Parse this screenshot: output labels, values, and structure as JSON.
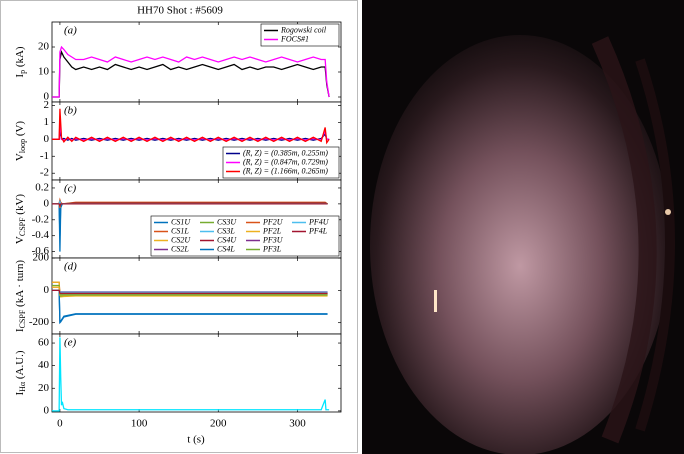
{
  "chart_data": {
    "type": "line",
    "title": "HH70 Shot : #5609",
    "xlabel": "t (s)",
    "xlim": [
      -10,
      355
    ],
    "xticks": [
      0,
      100,
      200,
      300
    ],
    "panels": [
      {
        "label": "(a)",
        "ylabel": {
          "base": "I",
          "sub": "p",
          "unit": " (kA)"
        },
        "ylim": [
          -2,
          30
        ],
        "yticks": [
          0,
          10,
          20
        ],
        "legend": "upper right",
        "x": [
          -10,
          -1,
          0,
          2,
          5,
          10,
          15,
          20,
          30,
          40,
          50,
          60,
          70,
          80,
          90,
          100,
          110,
          120,
          130,
          140,
          150,
          160,
          170,
          180,
          190,
          200,
          210,
          220,
          230,
          240,
          250,
          260,
          270,
          280,
          290,
          300,
          310,
          320,
          330,
          335,
          337,
          340
        ],
        "series": [
          {
            "name": "Rogowski coil",
            "color": "#000000",
            "values": [
              0,
              0,
              15,
              18,
              16,
              14,
              12,
              11,
              12,
              11,
              12,
              11,
              13,
              12,
              11,
              12,
              11,
              12,
              13,
              11,
              12,
              11,
              12,
              13,
              12,
              11,
              12,
              13,
              11,
              12,
              11,
              12,
              12,
              11,
              12,
              13,
              12,
              11,
              12,
              12,
              5,
              0
            ]
          },
          {
            "name": "FOCS#1",
            "color": "#ff00ff",
            "values": [
              0,
              0,
              18,
              20,
              19,
              17,
              16,
              15,
              15,
              16,
              15,
              14,
              16,
              15,
              14,
              15,
              16,
              15,
              16,
              15,
              14,
              16,
              15,
              16,
              15,
              14,
              15,
              16,
              15,
              16,
              15,
              14,
              15,
              16,
              15,
              14,
              15,
              16,
              15,
              15,
              6,
              0
            ]
          }
        ]
      },
      {
        "label": "(b)",
        "ylabel": {
          "base": "V",
          "sub": "loop",
          "unit": " (V)"
        },
        "ylim": [
          -2.4,
          2.2
        ],
        "yticks": [
          2,
          1,
          0,
          -1,
          -2
        ],
        "legend": "lower right",
        "x": [
          -10,
          -1,
          0,
          2,
          5,
          10,
          15,
          20,
          30,
          40,
          50,
          60,
          70,
          80,
          90,
          100,
          110,
          120,
          130,
          140,
          150,
          160,
          170,
          180,
          190,
          200,
          210,
          220,
          230,
          240,
          250,
          260,
          270,
          280,
          290,
          300,
          310,
          320,
          330,
          335,
          337,
          340
        ],
        "series": [
          {
            "name": "(R, Z) = (0.385m, 0.255m)",
            "color": "#00008b",
            "values": [
              0,
              0,
              0.5,
              0,
              0.05,
              -0.05,
              0.05,
              -0.05,
              0.05,
              -0.05,
              0.05,
              -0.05,
              0.05,
              -0.05,
              0.05,
              -0.05,
              0.05,
              -0.05,
              0.05,
              -0.05,
              0.05,
              -0.05,
              0.05,
              -0.05,
              0.05,
              -0.05,
              0.05,
              -0.05,
              0.05,
              -0.05,
              0.05,
              -0.05,
              0.05,
              -0.05,
              0.05,
              -0.05,
              0.05,
              -0.05,
              0.05,
              0.3,
              0,
              0
            ]
          },
          {
            "name": "(R, Z) = (0.847m, 0.729m)",
            "color": "#ff00ff",
            "values": [
              0,
              0,
              1,
              0,
              -0.05,
              0.05,
              -0.05,
              0.05,
              -0.05,
              0.05,
              -0.05,
              0.05,
              -0.05,
              0.05,
              -0.05,
              0.05,
              -0.05,
              0.05,
              -0.05,
              0.05,
              -0.05,
              0.05,
              -0.05,
              0.05,
              -0.05,
              0.05,
              -0.05,
              0.05,
              -0.05,
              0.05,
              -0.05,
              0.05,
              -0.05,
              0.05,
              -0.05,
              0.05,
              -0.05,
              0.05,
              -0.05,
              0.5,
              0,
              0
            ]
          },
          {
            "name": "(R, Z) = (1.166m, 0.265m)",
            "color": "#ff0000",
            "values": [
              0,
              0,
              1.8,
              0.1,
              -0.15,
              0.12,
              -0.12,
              0.12,
              -0.12,
              0.12,
              -0.12,
              0.12,
              -0.12,
              0.12,
              -0.12,
              0.12,
              -0.12,
              0.12,
              -0.12,
              0.12,
              -0.12,
              0.12,
              -0.12,
              0.12,
              -0.12,
              0.12,
              -0.12,
              0.12,
              -0.12,
              0.12,
              -0.12,
              0.12,
              -0.12,
              0.12,
              -0.12,
              0.12,
              -0.12,
              0.12,
              -0.12,
              0.7,
              -0.2,
              0
            ]
          }
        ]
      },
      {
        "label": "(c)",
        "ylabel": {
          "base": "V",
          "sub": "CSPF",
          "unit": " (kV)"
        },
        "ylim": [
          -0.68,
          0.3
        ],
        "yticks": [
          0.2,
          0,
          -0.2,
          -0.4,
          -0.6
        ],
        "legend": "lower right",
        "x": [
          -10,
          -1,
          0,
          1,
          3,
          20,
          335,
          338
        ],
        "series": [
          {
            "name": "CS1U",
            "color": "#0072bd",
            "values": [
              0,
              0,
              -0.6,
              -0.05,
              0,
              0,
              0,
              0
            ]
          },
          {
            "name": "CS1L",
            "color": "#d95319",
            "values": [
              0,
              0,
              0.05,
              0.02,
              0,
              0.02,
              0.02,
              0
            ]
          },
          {
            "name": "CS2U",
            "color": "#edb120",
            "values": [
              0,
              0,
              0.03,
              0,
              0,
              0.01,
              0.01,
              0
            ]
          },
          {
            "name": "CS2L",
            "color": "#7e2f8e",
            "values": [
              0,
              0,
              -0.03,
              0,
              0,
              0,
              0,
              0
            ]
          },
          {
            "name": "CS3U",
            "color": "#77ac30",
            "values": [
              0,
              0,
              0.02,
              0,
              0,
              0.01,
              0.01,
              0
            ]
          },
          {
            "name": "CS3L",
            "color": "#4dbeee",
            "values": [
              0,
              0,
              -0.02,
              0,
              0,
              0,
              0,
              0
            ]
          },
          {
            "name": "CS4U",
            "color": "#a2142f",
            "values": [
              0,
              0,
              0.04,
              0,
              0,
              0.01,
              0.01,
              0
            ]
          },
          {
            "name": "CS4L",
            "color": "#0072bd",
            "values": [
              0,
              0,
              -0.4,
              -0.03,
              0,
              0,
              0,
              0
            ]
          },
          {
            "name": "PF2U",
            "color": "#d95319",
            "values": [
              0,
              0,
              0.05,
              0,
              0,
              0,
              0,
              0
            ]
          },
          {
            "name": "PF2L",
            "color": "#edb120",
            "values": [
              0,
              0,
              -0.05,
              0,
              0,
              0,
              0,
              0
            ]
          },
          {
            "name": "PF3U",
            "color": "#7e2f8e",
            "values": [
              0,
              0,
              0.02,
              0,
              0,
              0,
              0,
              0
            ]
          },
          {
            "name": "PF3L",
            "color": "#77ac30",
            "values": [
              0,
              0,
              -0.02,
              0,
              0,
              0,
              0,
              0
            ]
          },
          {
            "name": "PF4U",
            "color": "#4dbeee",
            "values": [
              0,
              0,
              0.03,
              0,
              0,
              0,
              0,
              0
            ]
          },
          {
            "name": "PF4L",
            "color": "#a2142f",
            "values": [
              0,
              0,
              -0.03,
              0,
              0,
              0,
              0,
              0
            ]
          }
        ]
      },
      {
        "label": "(d)",
        "ylabel": {
          "base": "I",
          "sub": "CSPF",
          "unit": " (kA · turn)"
        },
        "ylim": [
          -270,
          200
        ],
        "yticks": [
          200,
          0,
          -200
        ],
        "x": [
          -10,
          -1,
          0,
          1,
          5,
          20,
          335,
          338
        ],
        "series": [
          {
            "color": "#0072bd",
            "values": [
              0,
              0,
              -200,
              -195,
              -165,
              -148,
              -148,
              -148
            ]
          },
          {
            "color": "#d95319",
            "values": [
              50,
              50,
              -30,
              -30,
              -28,
              -25,
              -25,
              -25
            ]
          },
          {
            "color": "#edb120",
            "values": [
              50,
              50,
              -40,
              -40,
              -38,
              -35,
              -35,
              -35
            ]
          },
          {
            "color": "#7e2f8e",
            "values": [
              0,
              0,
              -20,
              -20,
              -20,
              -20,
              -20,
              -20
            ]
          },
          {
            "color": "#77ac30",
            "values": [
              30,
              30,
              -35,
              -35,
              -32,
              -30,
              -30,
              -30
            ]
          },
          {
            "color": "#4dbeee",
            "values": [
              0,
              0,
              -25,
              -25,
              -25,
              -25,
              -25,
              -25
            ]
          },
          {
            "color": "#a2142f",
            "values": [
              0,
              0,
              -15,
              -15,
              -15,
              -15,
              -15,
              -15
            ]
          },
          {
            "color": "#0072bd",
            "values": [
              0,
              0,
              -195,
              -190,
              -160,
              -145,
              -145,
              -145
            ]
          },
          {
            "color": "#d95319",
            "values": [
              20,
              20,
              -20,
              -20,
              -20,
              -20,
              -20,
              -20
            ]
          },
          {
            "color": "#edb120",
            "values": [
              20,
              20,
              -30,
              -30,
              -30,
              -30,
              -30,
              -30
            ]
          },
          {
            "color": "#7e2f8e",
            "values": [
              0,
              0,
              -10,
              -10,
              -10,
              -10,
              -10,
              -10
            ]
          },
          {
            "color": "#77ac30",
            "values": [
              0,
              0,
              -28,
              -28,
              -28,
              -28,
              -28,
              -28
            ]
          },
          {
            "color": "#4dbeee",
            "values": [
              0,
              0,
              -12,
              -12,
              -12,
              -12,
              -12,
              -12
            ]
          },
          {
            "color": "#a2142f",
            "values": [
              0,
              0,
              -18,
              -18,
              -18,
              -18,
              -18,
              -18
            ]
          }
        ]
      },
      {
        "label": "(e)",
        "ylabel": {
          "base": "I",
          "sub": "Hα",
          "unit": " (A.U.)"
        },
        "ylim": [
          -1,
          68
        ],
        "yticks": [
          60,
          40,
          20,
          0
        ],
        "x": [
          -10,
          -1,
          0,
          1,
          2,
          3,
          5,
          10,
          20,
          330,
          335,
          336,
          340
        ],
        "series": [
          {
            "color": "#00e5ff",
            "values": [
              0,
              0,
              65,
              30,
              5,
              8,
              2,
              1,
              1,
              1,
              10,
              1,
              1
            ]
          }
        ]
      }
    ]
  }
}
